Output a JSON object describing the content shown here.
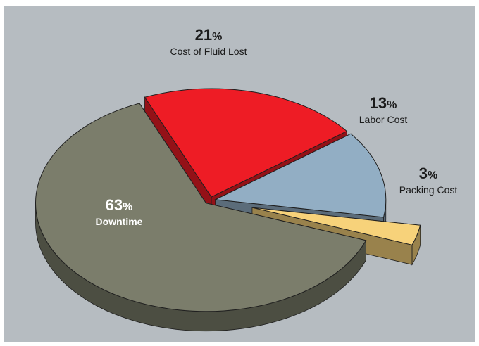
{
  "chart_data": {
    "type": "pie",
    "style": "3d-exploded",
    "title": "",
    "slices": [
      {
        "label": "Cost of Fluid Lost",
        "value": 21,
        "display": "21",
        "unit": "%",
        "color": "#ee1c25"
      },
      {
        "label": "Labor Cost",
        "value": 13,
        "display": "13",
        "unit": "%",
        "color": "#92aec4"
      },
      {
        "label": "Packing Cost",
        "value": 3,
        "display": "3",
        "unit": "%",
        "color": "#f7d27a"
      },
      {
        "label": "Downtime",
        "value": 63,
        "display": "63",
        "unit": "%",
        "color": "#7b7d6b"
      }
    ],
    "legend": "none",
    "grid": false,
    "background": "#b6bcc1"
  }
}
